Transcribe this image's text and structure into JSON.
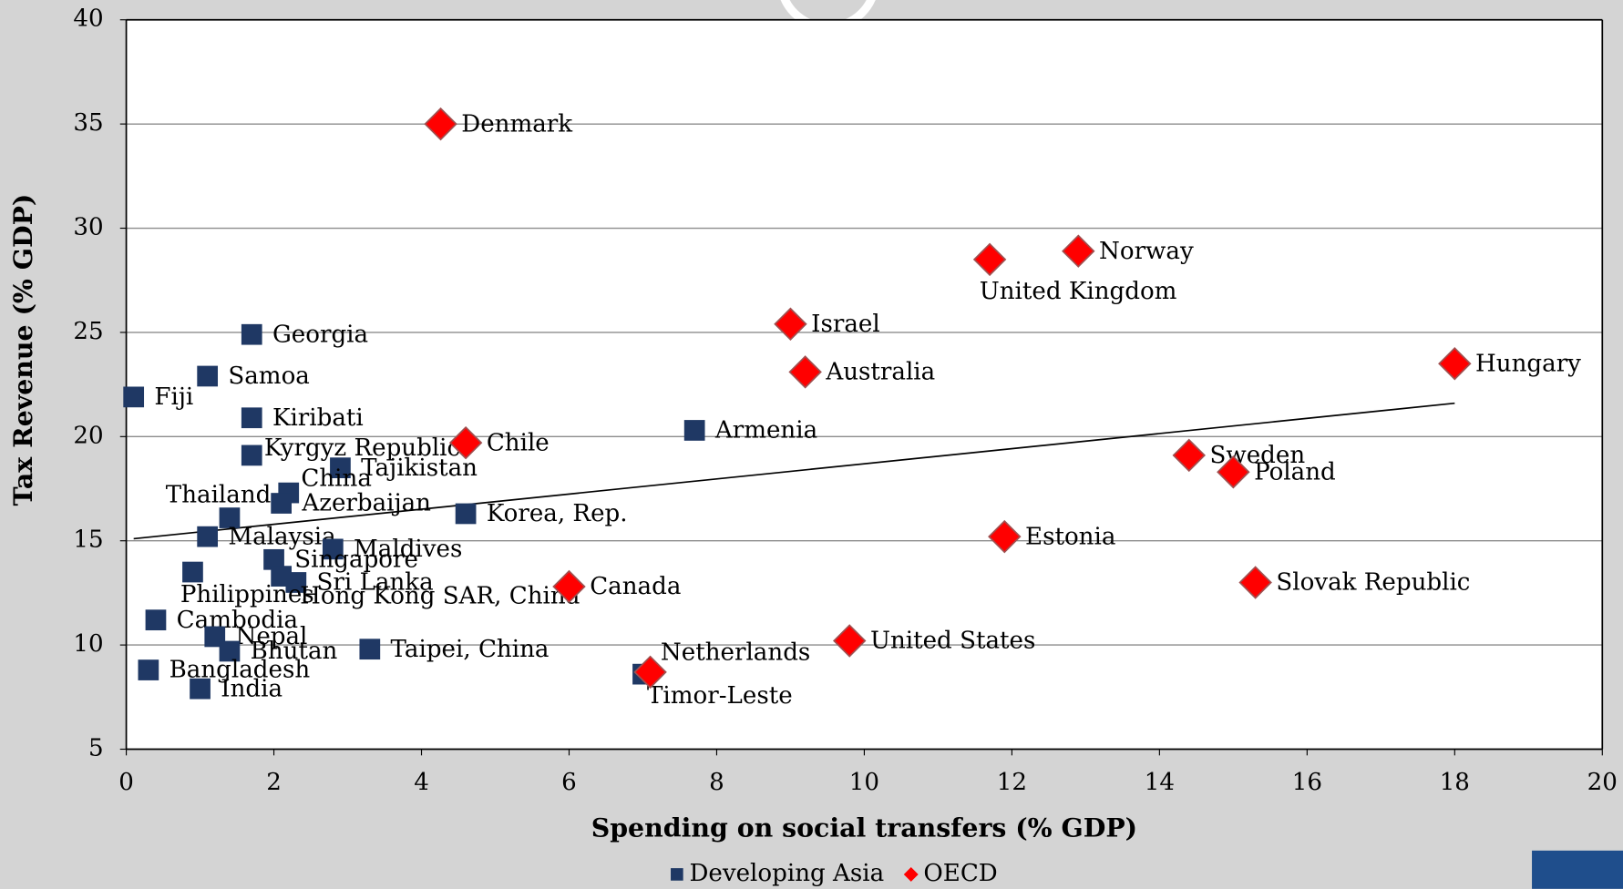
{
  "chart_data": {
    "type": "scatter",
    "xlabel": "Spending on social transfers (% GDP)",
    "ylabel": "Tax Revenue (% GDP)",
    "xlim": [
      0,
      20
    ],
    "xticks": [
      0,
      2,
      4,
      6,
      8,
      10,
      12,
      14,
      16,
      18,
      20
    ],
    "ylim": [
      5,
      40
    ],
    "yticks": [
      5,
      10,
      15,
      20,
      25,
      30,
      35,
      40
    ],
    "grid": true,
    "legend": "bottom",
    "series": [
      {
        "name": "Developing Asia",
        "color": "#1f3864",
        "marker": "square",
        "labels": [
          "Georgia",
          "Samoa",
          "Fiji",
          "Kiribati",
          "Kyrgyz Republic",
          "Tajikistan",
          "China",
          "Azerbaijan",
          "Thailand",
          "Malaysia",
          "Maldives",
          "Singapore",
          "Sri Lanka",
          "Hong Kong SAR, China",
          "Philippines",
          "Armenia",
          "Korea, Rep.",
          "Cambodia",
          "Nepal",
          "Bhutan",
          "Taipei, China",
          "Bangladesh",
          "India",
          "Timor-Leste"
        ],
        "x": [
          1.7,
          1.1,
          0.1,
          1.7,
          1.7,
          2.9,
          2.2,
          2.1,
          1.4,
          1.1,
          2.8,
          2.0,
          2.3,
          2.1,
          0.9,
          7.7,
          4.6,
          0.4,
          1.2,
          1.4,
          3.3,
          0.3,
          1.0,
          7.0
        ],
        "values": [
          24.9,
          22.9,
          21.9,
          20.9,
          19.1,
          18.5,
          17.3,
          16.8,
          16.1,
          15.2,
          14.6,
          14.1,
          13.0,
          13.3,
          13.5,
          20.3,
          16.3,
          11.2,
          10.4,
          9.7,
          9.8,
          8.8,
          7.9,
          8.6
        ]
      },
      {
        "name": "OECD",
        "color": "#ff0000",
        "marker": "diamond",
        "labels": [
          "Denmark",
          "Norway",
          "United Kingdom",
          "Israel",
          "Australia",
          "Hungary",
          "Chile",
          "Sweden",
          "Poland",
          "Estonia",
          "Canada",
          "Slovak Republic",
          "United States",
          "Netherlands"
        ],
        "x": [
          4.26,
          12.9,
          11.7,
          9.0,
          9.2,
          18.0,
          4.6,
          14.4,
          15.0,
          11.9,
          6.0,
          15.3,
          9.8,
          7.1
        ],
        "values": [
          35.0,
          28.9,
          28.5,
          25.4,
          23.1,
          23.5,
          19.7,
          19.1,
          18.3,
          15.2,
          12.8,
          13.0,
          10.2,
          8.7
        ]
      }
    ],
    "trendline": {
      "color": "#000000",
      "x": [
        0.1,
        18
      ],
      "values": [
        15.1,
        21.6
      ]
    }
  }
}
